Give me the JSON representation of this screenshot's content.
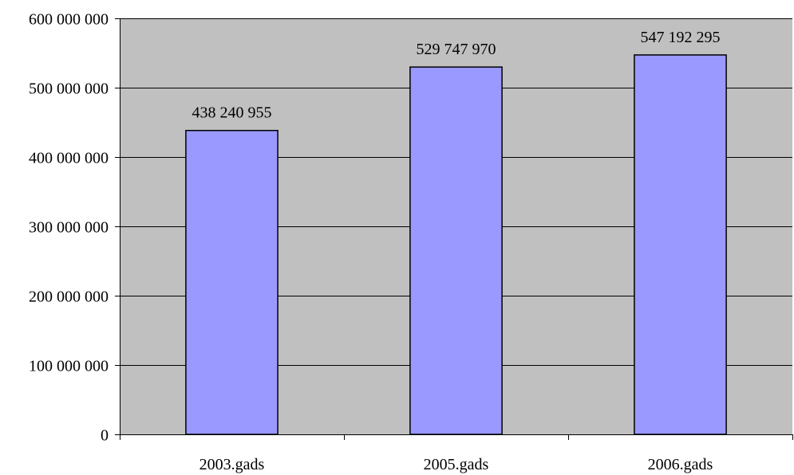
{
  "chart_data": {
    "type": "bar",
    "categories": [
      "2003.gads",
      "2005.gads",
      "2006.gads"
    ],
    "values": [
      438240955,
      529747970,
      547192295
    ],
    "data_labels": [
      "438 240 955",
      "529 747 970",
      "547 192 295"
    ],
    "y_ticks": [
      {
        "value": 0,
        "label": "0"
      },
      {
        "value": 100000000,
        "label": "100 000 000"
      },
      {
        "value": 200000000,
        "label": "200 000 000"
      },
      {
        "value": 300000000,
        "label": "300 000 000"
      },
      {
        "value": 400000000,
        "label": "400 000 000"
      },
      {
        "value": 500000000,
        "label": "500 000 000"
      },
      {
        "value": 600000000,
        "label": "600 000 000"
      }
    ],
    "ylim": [
      0,
      600000000
    ],
    "grid": true,
    "legend": "none",
    "colors": {
      "plot_background": "#c0c0c0",
      "bar_fill": "#9999ff",
      "bar_stroke": "#000000",
      "gridline": "#000000"
    }
  }
}
